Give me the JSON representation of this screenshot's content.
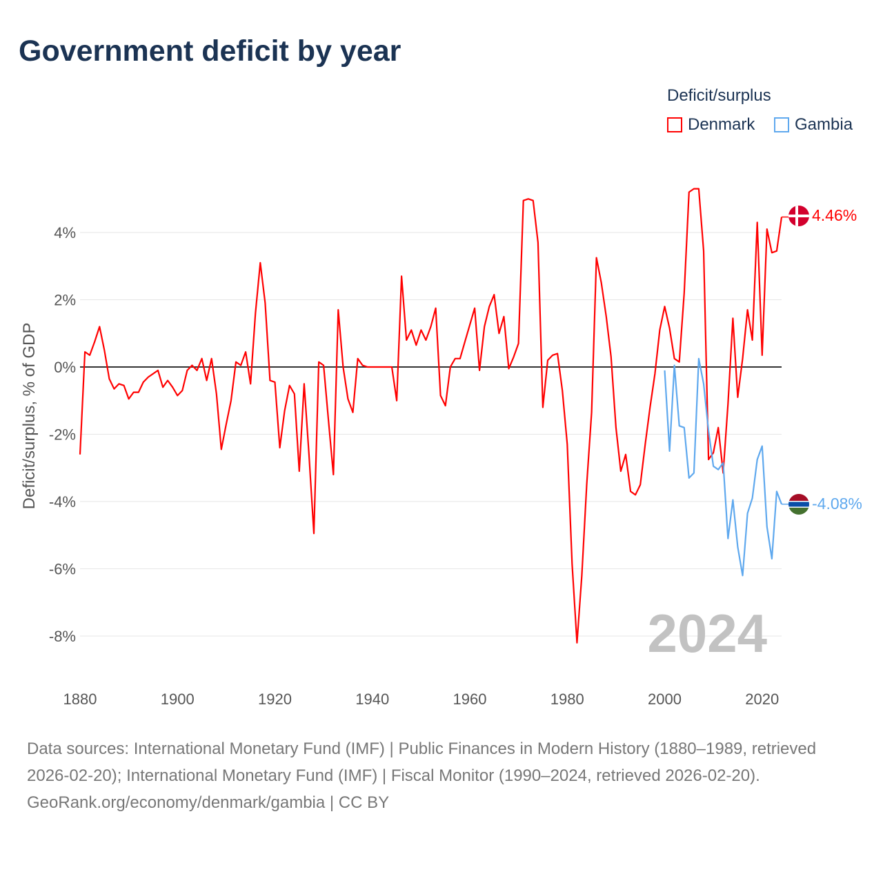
{
  "chart_data": {
    "type": "line",
    "title": "Government deficit by year",
    "ylabel": "Deficit/surplus, % of GDP",
    "xlabel": "",
    "xlim": [
      1880,
      2024
    ],
    "ylim": [
      -9,
      5.5
    ],
    "x_ticks": [
      1880,
      1900,
      1920,
      1940,
      1960,
      1980,
      2000,
      2020
    ],
    "x_tick_labels": [
      "1880",
      "1900",
      "1920",
      "1940",
      "1960",
      "1980",
      "2000",
      "2020"
    ],
    "y_ticks": [
      4,
      2,
      0,
      -2,
      -4,
      -6,
      -8
    ],
    "y_tick_labels": [
      "4%",
      "2%",
      "0%",
      "-2%",
      "-4%",
      "-6%",
      "-8%"
    ],
    "grid": true,
    "legend": {
      "title": "Deficit/surplus",
      "placement": "top-right"
    },
    "year_watermark": "2024",
    "series": [
      {
        "name": "Denmark",
        "color": "#ff0000",
        "x_start": 1880,
        "end_label": "4.46%",
        "values": [
          -2.6,
          0.45,
          0.35,
          0.75,
          1.2,
          0.5,
          -0.35,
          -0.65,
          -0.5,
          -0.55,
          -0.95,
          -0.75,
          -0.75,
          -0.45,
          -0.3,
          -0.2,
          -0.1,
          -0.6,
          -0.4,
          -0.6,
          -0.85,
          -0.7,
          -0.1,
          0.05,
          -0.1,
          0.25,
          -0.4,
          0.25,
          -0.8,
          -2.45,
          -1.7,
          -1.0,
          0.15,
          0.05,
          0.45,
          -0.5,
          1.6,
          3.1,
          1.9,
          -0.4,
          -0.45,
          -2.4,
          -1.3,
          -0.55,
          -0.8,
          -3.1,
          -0.5,
          -2.6,
          -4.95,
          0.15,
          0.05,
          -1.6,
          -3.2,
          1.7,
          0,
          -0.95,
          -1.35,
          0.25,
          0.05,
          0,
          0,
          0,
          0,
          0,
          0,
          -1.0,
          2.7,
          0.8,
          1.1,
          0.65,
          1.1,
          0.8,
          1.2,
          1.75,
          -0.85,
          -1.15,
          0,
          0.25,
          0.25,
          0.75,
          1.25,
          1.75,
          -0.1,
          1.2,
          1.8,
          2.15,
          1.0,
          1.5,
          -0.05,
          0.3,
          0.7,
          4.95,
          5.0,
          4.95,
          3.7,
          -1.2,
          0.2,
          0.35,
          0.4,
          -0.7,
          -2.3,
          -5.85,
          -8.2,
          -6.2,
          -3.5,
          -1.35,
          3.25,
          2.5,
          1.5,
          0.3,
          -1.8,
          -3.1,
          -2.6,
          -3.7,
          -3.8,
          -3.5,
          -2.3,
          -1.2,
          -0.2,
          1.1,
          1.8,
          1.15,
          0.25,
          0.15,
          2.2,
          5.2,
          5.3,
          5.3,
          3.45,
          -2.75,
          -2.55,
          -1.8,
          -3.15,
          -1.1,
          1.45,
          -0.9,
          0.25,
          1.7,
          0.8,
          4.3,
          0.35,
          4.1,
          3.4,
          3.45,
          4.46
        ]
      },
      {
        "name": "Gambia",
        "color": "#5ea8ee",
        "x_start": 2000,
        "end_label": "-4.08%",
        "values": [
          -0.1,
          -2.5,
          0.05,
          -1.75,
          -1.8,
          -3.3,
          -3.15,
          0.25,
          -0.5,
          -1.9,
          -2.95,
          -3.05,
          -2.85,
          -5.1,
          -3.95,
          -5.35,
          -6.2,
          -4.35,
          -3.9,
          -2.75,
          -2.35,
          -4.75,
          -5.7,
          -3.7,
          -4.08
        ]
      }
    ]
  },
  "footer": {
    "sources": "Data sources: International Monetary Fund (IMF) | Public Finances in Modern History (1880–1989, retrieved 2026-02-20); International Monetary Fund (IMF) | Fiscal Monitor (1990–2024, retrieved 2026-02-20).",
    "credit": "GeoRank.org/economy/denmark/gambia | CC BY"
  }
}
